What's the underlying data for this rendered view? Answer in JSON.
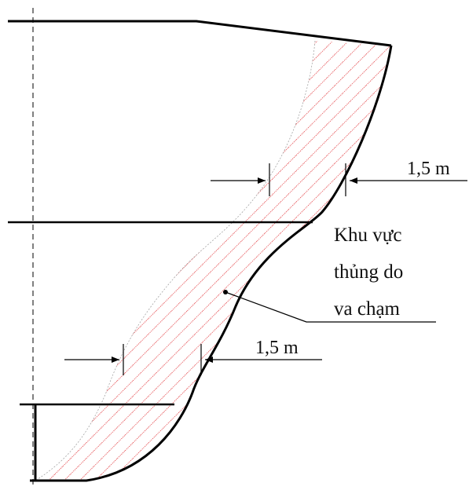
{
  "diagram": {
    "dimension_upper": "1,5 m",
    "dimension_lower": "1,5 m",
    "callout_lines": [
      "Khu vực",
      "thủng do",
      "va chạm"
    ]
  },
  "colors": {
    "outline": "#000000",
    "hatch": "#e0282c",
    "centerline": "#000000"
  }
}
